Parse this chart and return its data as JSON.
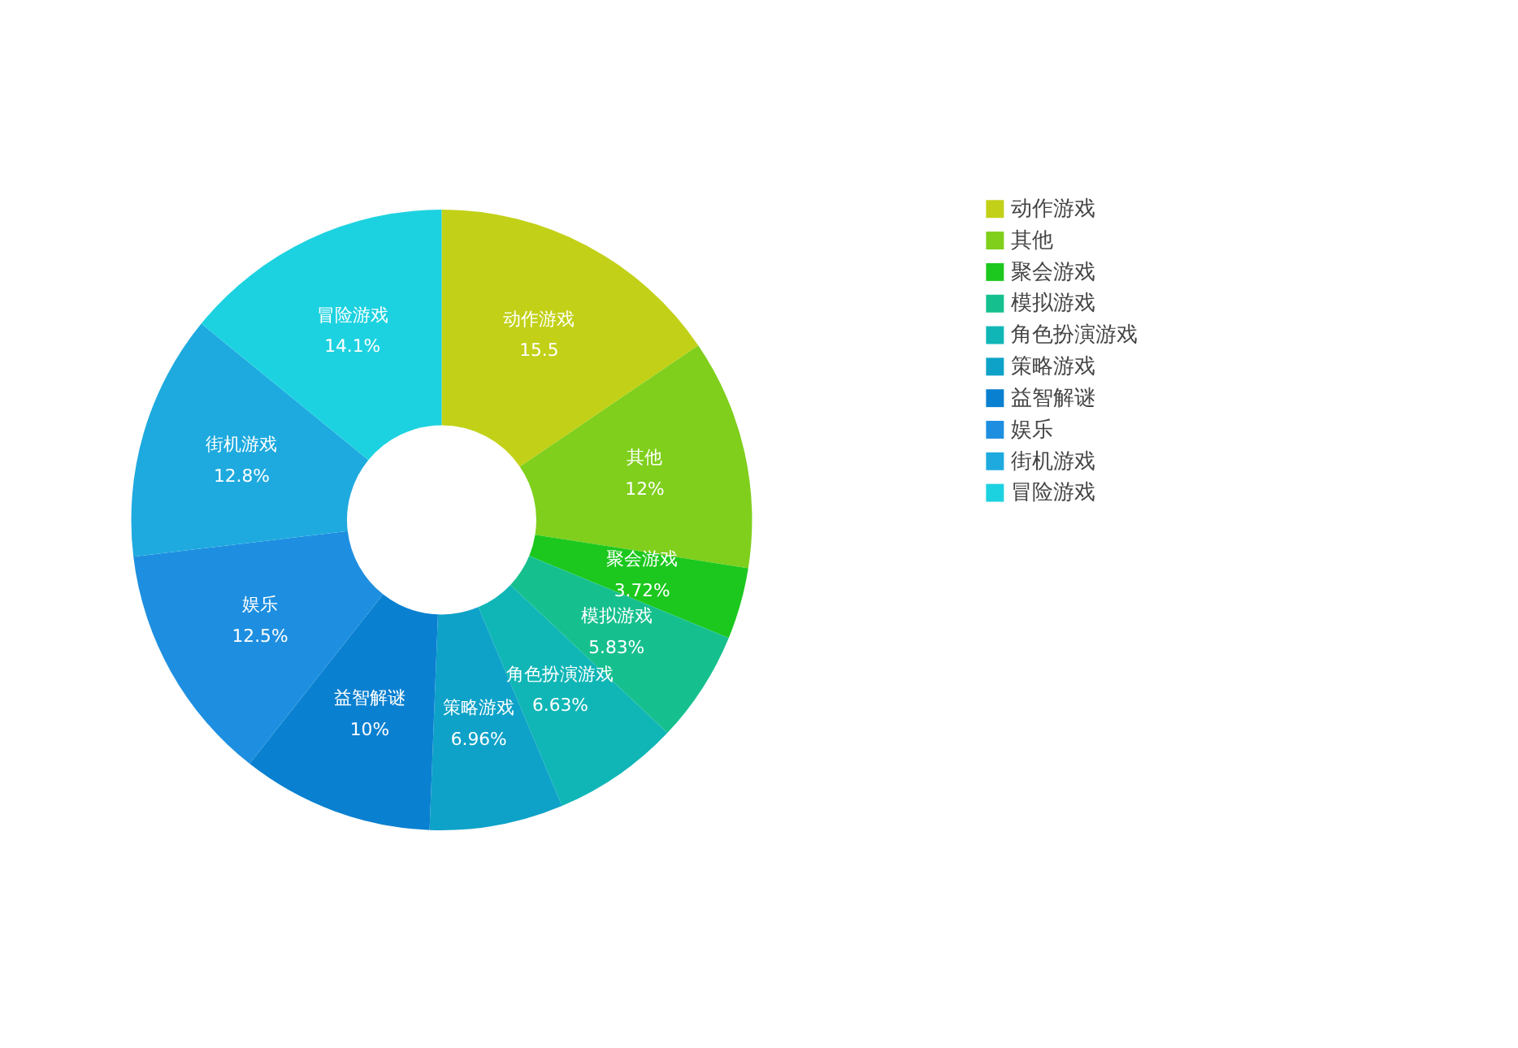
{
  "chart_data": {
    "type": "donut",
    "categories": [
      "动作游戏",
      "其他",
      "聚会游戏",
      "模拟游戏",
      "角色扮演游戏",
      "策略游戏",
      "益智解谜",
      "娱乐",
      "街机游戏",
      "冒险游戏"
    ],
    "values": [
      15.5,
      12,
      3.72,
      5.83,
      6.63,
      6.96,
      10,
      12.5,
      12.8,
      14.1
    ],
    "value_labels": [
      "15.5",
      "12%",
      "3.72%",
      "5.83%",
      "6.63%",
      "6.96%",
      "10%",
      "12.5%",
      "12.8%",
      "14.1%"
    ],
    "colors": [
      "#c2d117",
      "#7fcf1c",
      "#1cc81e",
      "#16c08e",
      "#10b6b6",
      "#0ea2c8",
      "#0a80d0",
      "#1e8fe0",
      "#1eaadf",
      "#1dd2e0"
    ],
    "legend": "top right"
  }
}
